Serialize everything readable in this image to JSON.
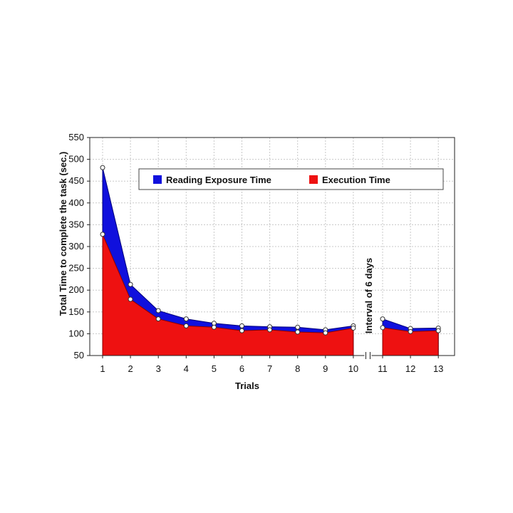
{
  "chart_data": {
    "type": "area",
    "xlabel": "Trials",
    "ylabel": "Total Time to complete the task (sec.)",
    "ylim": [
      50,
      550
    ],
    "yticks": [
      50,
      100,
      150,
      200,
      250,
      300,
      350,
      400,
      450,
      500,
      550
    ],
    "x_segments": [
      [
        1,
        10
      ],
      [
        11,
        13
      ]
    ],
    "x_ticks": [
      "1",
      "2",
      "3",
      "4",
      "5",
      "6",
      "7",
      "8",
      "9",
      "10",
      "11",
      "12",
      "13"
    ],
    "grid": true,
    "legend_placement": "top",
    "annotation": "Interval of 6 days",
    "series": [
      {
        "name": "Reading Exposure Time",
        "color": "#1010dd",
        "x": [
          1,
          2,
          3,
          4,
          5,
          6,
          7,
          8,
          9,
          10,
          11,
          12,
          13
        ],
        "total": [
          481,
          213,
          153,
          134,
          124,
          118,
          116,
          115,
          109,
          118,
          134,
          112,
          113
        ]
      },
      {
        "name": "Execution Time",
        "color": "#ee1111",
        "x": [
          1,
          2,
          3,
          4,
          5,
          6,
          7,
          8,
          9,
          10,
          11,
          12,
          13
        ],
        "values": [
          328,
          179,
          134,
          118,
          115,
          107,
          109,
          104,
          102,
          113,
          114,
          105,
          107
        ]
      }
    ]
  }
}
